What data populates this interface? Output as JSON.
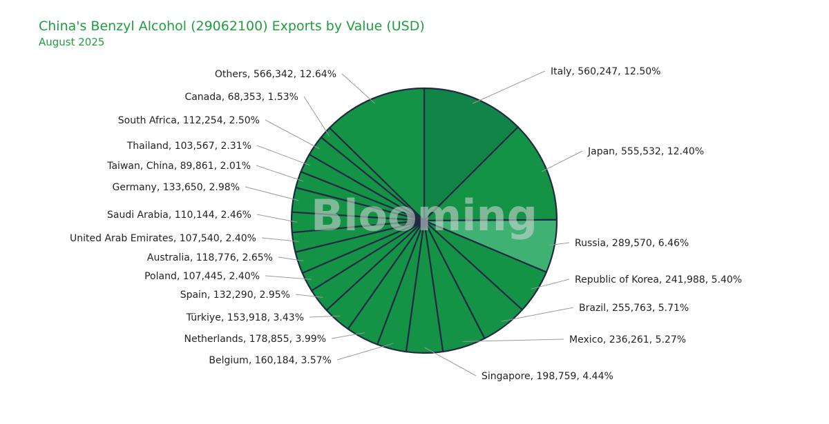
{
  "chart_data": {
    "type": "pie",
    "title": "China's Benzyl Alcohol (29062100) Exports by Value (USD)",
    "subtitle": "August 2025",
    "watermark": "Blooming",
    "colors": {
      "slice": "#149346",
      "slice_dark": "#118447",
      "slice_light": "#3fb273",
      "border": "#1f2a44",
      "text": "#1e9e3e"
    },
    "slices": [
      {
        "name": "Italy",
        "value": 560247,
        "percent": "12.50%",
        "label": "Italy, 560,247, 12.50%",
        "shade": "dark"
      },
      {
        "name": "Japan",
        "value": 555532,
        "percent": "12.40%",
        "label": "Japan, 555,532, 12.40%",
        "shade": "normal"
      },
      {
        "name": "Russia",
        "value": 289570,
        "percent": "6.46%",
        "label": "Russia, 289,570, 6.46%",
        "shade": "light"
      },
      {
        "name": "Republic of Korea",
        "value": 241988,
        "percent": "5.40%",
        "label": "Republic of Korea, 241,988, 5.40%",
        "shade": "normal"
      },
      {
        "name": "Brazil",
        "value": 255763,
        "percent": "5.71%",
        "label": "Brazil, 255,763, 5.71%",
        "shade": "normal"
      },
      {
        "name": "Mexico",
        "value": 236261,
        "percent": "5.27%",
        "label": "Mexico, 236,261, 5.27%",
        "shade": "normal"
      },
      {
        "name": "Singapore",
        "value": 198759,
        "percent": "4.44%",
        "label": "Singapore, 198,759, 4.44%",
        "shade": "normal"
      },
      {
        "name": "Belgium",
        "value": 160184,
        "percent": "3.57%",
        "label": "Belgium, 160,184, 3.57%",
        "shade": "normal"
      },
      {
        "name": "Netherlands",
        "value": 178855,
        "percent": "3.99%",
        "label": "Netherlands, 178,855, 3.99%",
        "shade": "normal"
      },
      {
        "name": "Türkiye",
        "value": 153918,
        "percent": "3.43%",
        "label": "Türkiye, 153,918, 3.43%",
        "shade": "normal"
      },
      {
        "name": "Spain",
        "value": 132290,
        "percent": "2.95%",
        "label": "Spain, 132,290, 2.95%",
        "shade": "normal"
      },
      {
        "name": "Poland",
        "value": 107445,
        "percent": "2.40%",
        "label": "Poland, 107,445, 2.40%",
        "shade": "normal"
      },
      {
        "name": "Australia",
        "value": 118776,
        "percent": "2.65%",
        "label": "Australia, 118,776, 2.65%",
        "shade": "normal"
      },
      {
        "name": "United Arab Emirates",
        "value": 107540,
        "percent": "2.40%",
        "label": "United Arab Emirates, 107,540, 2.40%",
        "shade": "normal"
      },
      {
        "name": "Saudi Arabia",
        "value": 110144,
        "percent": "2.46%",
        "label": "Saudi Arabia, 110,144, 2.46%",
        "shade": "normal"
      },
      {
        "name": "Germany",
        "value": 133650,
        "percent": "2.98%",
        "label": "Germany, 133,650, 2.98%",
        "shade": "normal"
      },
      {
        "name": "Taiwan,  China",
        "value": 89861,
        "percent": "2.01%",
        "label": "Taiwan,  China, 89,861, 2.01%",
        "shade": "normal"
      },
      {
        "name": "Thailand",
        "value": 103567,
        "percent": "2.31%",
        "label": "Thailand, 103,567, 2.31%",
        "shade": "normal"
      },
      {
        "name": "South Africa",
        "value": 112254,
        "percent": "2.50%",
        "label": "South Africa, 112,254, 2.50%",
        "shade": "normal"
      },
      {
        "name": "Canada",
        "value": 68353,
        "percent": "1.53%",
        "label": "Canada, 68,353, 1.53%",
        "shade": "normal"
      },
      {
        "name": "Others",
        "value": 566342,
        "percent": "12.64%",
        "label": "Others, 566,342, 12.64%",
        "shade": "normal"
      }
    ]
  }
}
